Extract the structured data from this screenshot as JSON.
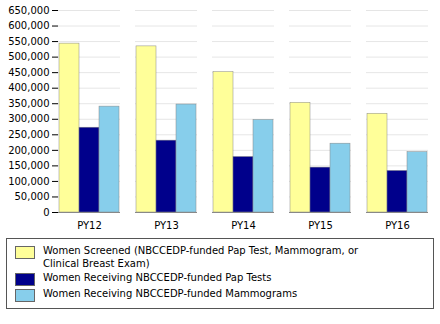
{
  "chart_data": {
    "type": "bar",
    "categories": [
      "PY12",
      "PY13",
      "PY14",
      "PY15",
      "PY16"
    ],
    "series": [
      {
        "name": "Women Screened (NBCCEDP-funded Pap Test, Mammogram, or\nClinical Breast Exam)",
        "color": "#FFFF99",
        "values": [
          543432,
          534500,
          451670,
          353031,
          317782
        ]
      },
      {
        "name": "Women Receiving NBCCEDP-funded Pap Tests",
        "color": "#00008B",
        "values": [
          272857,
          231272,
          178649,
          144465,
          133776
        ]
      },
      {
        "name": "Women Receiving NBCCEDP-funded Mammograms",
        "color": "#87CEEB",
        "values": [
          340737,
          347448,
          297762,
          221442,
          194149
        ]
      }
    ],
    "ylim": [
      0,
      650000
    ],
    "yticks": [
      0,
      {
        "value": 50000,
        "label": "50,000"
      },
      {
        "value": 100000,
        "label": "100,000"
      },
      {
        "value": 150000,
        "label": "150,000"
      },
      {
        "value": 200000,
        "label": "200,000"
      },
      {
        "value": 250000,
        "label": "250,000"
      },
      {
        "value": 300000,
        "label": "300,000"
      },
      {
        "value": 350000,
        "label": "350,000"
      },
      {
        "value": 400000,
        "label": "400,000"
      },
      {
        "value": 450000,
        "label": "450,000"
      },
      {
        "value": 500000,
        "label": "500,000"
      },
      {
        "value": 550000,
        "label": "550,000"
      },
      {
        "value": 600000,
        "label": "600,000"
      },
      {
        "value": 650000,
        "label": "650,000"
      }
    ],
    "grid": true,
    "legend": "bottom"
  }
}
